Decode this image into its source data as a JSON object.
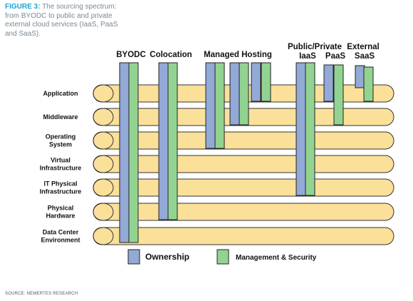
{
  "caption": {
    "figure_label": "FIGURE 3:",
    "text": "The sourcing spectrum: from BYODC to public and private external cloud services (IaaS, PaaS and SaaS)."
  },
  "source": "SOURCE: NEMERTES RESEARCH",
  "colors": {
    "layer_fill": "#fbe09a",
    "layer_stroke": "#333333",
    "ownership": "#93a9d6",
    "management": "#93d391",
    "bar_stroke": "#222222"
  },
  "layers": [
    {
      "label": [
        "Application"
      ]
    },
    {
      "label": [
        "Middleware"
      ]
    },
    {
      "label": [
        "Operating",
        "System"
      ]
    },
    {
      "label": [
        "Virtual",
        "Infrastructure"
      ]
    },
    {
      "label": [
        "IT Physical",
        "Infrastructure"
      ]
    },
    {
      "label": [
        "Physical",
        "Hardware"
      ]
    },
    {
      "label": [
        "Data Center",
        "Environment"
      ]
    }
  ],
  "column_headers": [
    {
      "lines": [
        "BYODC"
      ]
    },
    {
      "lines": [
        "Colocation"
      ]
    },
    {
      "lines": [
        "Managed Hosting"
      ]
    },
    {
      "lines": [
        "Public/Private",
        "IaaS"
      ]
    },
    {
      "lines": [
        "External",
        "PaaS"
      ]
    },
    {
      "lines": [
        "SaaS"
      ]
    }
  ],
  "bars": [
    {
      "group": "BYODC",
      "type": "ownership",
      "layers_covered": 7
    },
    {
      "group": "BYODC",
      "type": "management",
      "layers_covered": 7
    },
    {
      "group": "Colocation",
      "type": "ownership",
      "layers_covered": 6
    },
    {
      "group": "Colocation",
      "type": "management",
      "layers_covered": 6
    },
    {
      "group": "Managed Hosting",
      "type": "ownership",
      "layers_covered": 3
    },
    {
      "group": "Managed Hosting",
      "type": "management",
      "layers_covered": 3
    },
    {
      "group": "Managed Hosting",
      "type": "ownership",
      "layers_covered": 2
    },
    {
      "group": "Managed Hosting",
      "type": "management",
      "layers_covered": 2
    },
    {
      "group": "Managed Hosting",
      "type": "ownership",
      "layers_covered": 1
    },
    {
      "group": "Managed Hosting",
      "type": "management",
      "layers_covered": 1
    },
    {
      "group": "IaaS",
      "type": "ownership",
      "layers_covered": 5
    },
    {
      "group": "IaaS",
      "type": "management",
      "layers_covered": 5
    },
    {
      "group": "PaaS",
      "type": "ownership",
      "layers_covered": 1
    },
    {
      "group": "PaaS",
      "type": "management",
      "layers_covered": 2
    },
    {
      "group": "SaaS",
      "type": "ownership",
      "layers_covered": 0
    },
    {
      "group": "SaaS",
      "type": "management",
      "layers_covered": 1
    }
  ],
  "legend": [
    {
      "type": "ownership",
      "label": "Ownership"
    },
    {
      "type": "management",
      "label": "Management & Security"
    }
  ]
}
